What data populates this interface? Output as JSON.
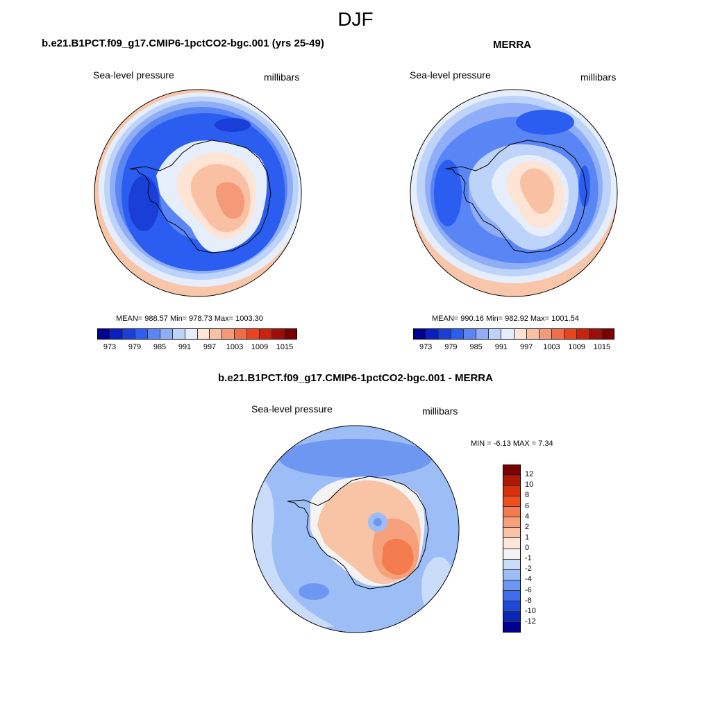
{
  "season": "DJF",
  "panels": {
    "model": {
      "title": "b.e21.B1PCT.f09_g17.CMIP6-1pctCO2-bgc.001 (yrs 25-49)",
      "field": "Sea-level pressure",
      "units": "millibars",
      "stats": "MEAN= 988.57  Min= 978.73  Max= 1003.30"
    },
    "obs": {
      "title": "MERRA",
      "field": "Sea-level pressure",
      "units": "millibars",
      "stats": "MEAN= 990.16  Min= 982.92  Max= 1001.54"
    },
    "diff": {
      "title": "b.e21.B1PCT.f09_g17.CMIP6-1pctCO2-bgc.001 - MERRA",
      "field": "Sea-level pressure",
      "units": "millibars",
      "stats": "MIN =  -6.13 MAX =   7.34"
    }
  },
  "colorbar_main": {
    "labels": [
      "973",
      "979",
      "985",
      "991",
      "997",
      "1003",
      "1009",
      "1015"
    ],
    "colors": [
      "#00008f",
      "#0a1fbf",
      "#1a3fd9",
      "#2b5ef0",
      "#5a86f5",
      "#8faef7",
      "#bdd3fa",
      "#e6eefc",
      "#fde4d4",
      "#f9c0a4",
      "#f59a78",
      "#f06d4a",
      "#e8451f",
      "#c9230c",
      "#9e0e06",
      "#7a0000"
    ]
  },
  "colorbar_diff": {
    "labels": [
      "12",
      "10",
      "8",
      "6",
      "4",
      "2",
      "1",
      "0",
      "-1",
      "-2",
      "-4",
      "-6",
      "-8",
      "-10",
      "-12"
    ],
    "colors": [
      "#7a0000",
      "#b01806",
      "#d9300d",
      "#f0501f",
      "#f47c4e",
      "#f7a07c",
      "#f9c3a6",
      "#fde6d8",
      "#f3f3f3",
      "#c9dcfa",
      "#9dbdf6",
      "#6e97f2",
      "#3e6ded",
      "#1f48da",
      "#0c27b4",
      "#00008f"
    ]
  }
}
